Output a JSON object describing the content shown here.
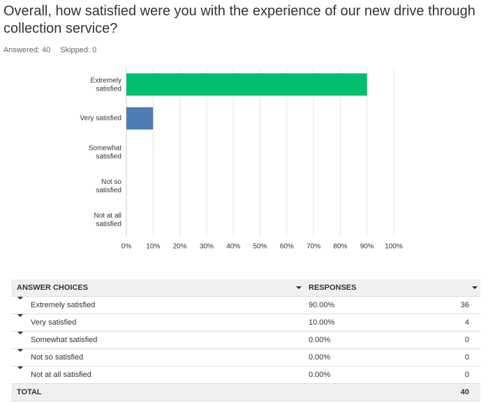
{
  "title": "Overall, how satisfied were you with the experience of our new drive through collection service?",
  "answered": "Answered: 40",
  "skipped": "Skipped: 0",
  "chart_data": {
    "type": "bar",
    "orientation": "horizontal",
    "categories": [
      "Extremely satisfied",
      "Very satisfied",
      "Somewhat satisfied",
      "Not so satisfied",
      "Not at all satisfied"
    ],
    "values": [
      90,
      10,
      0,
      0,
      0
    ],
    "colors": [
      "#00bf6f",
      "#507cb6",
      "#f9be00",
      "#6bc8cd",
      "#ff8b4f"
    ],
    "xlim": [
      0,
      100
    ],
    "xticks": [
      {
        "value": 0,
        "label": "0%"
      },
      {
        "value": 10,
        "label": "10%"
      },
      {
        "value": 20,
        "label": "20%"
      },
      {
        "value": 30,
        "label": "30%"
      },
      {
        "value": 40,
        "label": "40%"
      },
      {
        "value": 50,
        "label": "50%"
      },
      {
        "value": 60,
        "label": "60%"
      },
      {
        "value": 70,
        "label": "70%"
      },
      {
        "value": 80,
        "label": "80%"
      },
      {
        "value": 90,
        "label": "90%"
      },
      {
        "value": 100,
        "label": "100%"
      }
    ],
    "grid": true
  },
  "table": {
    "headers": [
      "ANSWER CHOICES",
      "RESPONSES"
    ],
    "rows": [
      [
        "Extremely satisfied",
        "90.00%",
        36
      ],
      [
        "Very satisfied",
        "10.00%",
        4
      ],
      [
        "Somewhat satisfied",
        "0.00%",
        0
      ],
      [
        "Not so satisfied",
        "0.00%",
        0
      ],
      [
        "Not at all satisfied",
        "0.00%",
        0
      ]
    ],
    "total": [
      "TOTAL",
      40
    ]
  }
}
